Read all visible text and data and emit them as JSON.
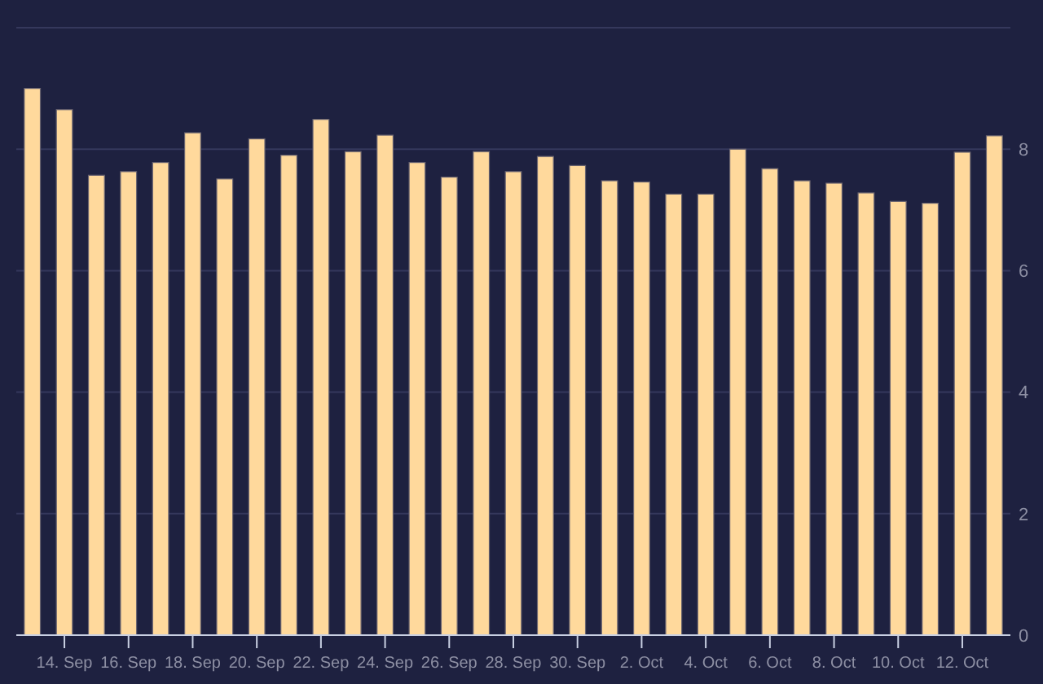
{
  "chart_data": {
    "type": "bar",
    "x": [
      "--09-13",
      "--09-14",
      "--09-15",
      "--09-16",
      "--09-17",
      "--09-18",
      "--09-19",
      "--09-20",
      "--09-21",
      "--09-22",
      "--09-23",
      "--09-24",
      "--09-25",
      "--09-26",
      "--09-27",
      "--09-28",
      "--09-29",
      "--09-30",
      "--10-01",
      "--10-02",
      "--10-03",
      "--10-04",
      "--10-05",
      "--10-06",
      "--10-07",
      "--10-08",
      "--10-09",
      "--10-10",
      "--10-11",
      "--10-12",
      "--10-13"
    ],
    "values": [
      9.0,
      8.65,
      7.57,
      7.63,
      7.78,
      8.27,
      7.51,
      8.17,
      7.9,
      8.49,
      7.96,
      8.23,
      7.78,
      7.54,
      7.96,
      7.63,
      7.88,
      7.73,
      7.48,
      7.46,
      7.26,
      7.26,
      8.0,
      7.68,
      7.48,
      7.44,
      7.28,
      7.14,
      7.11,
      7.95,
      8.22
    ],
    "color": "#ffd99c",
    "xlim": [
      "--09-12T12:00",
      "--10-13T12:00"
    ],
    "xticks": [
      {
        "value": "--09-14",
        "label": "14. Sep"
      },
      {
        "value": "--09-16",
        "label": "16. Sep"
      },
      {
        "value": "--09-18",
        "label": "18. Sep"
      },
      {
        "value": "--09-20",
        "label": "20. Sep"
      },
      {
        "value": "--09-22",
        "label": "22. Sep"
      },
      {
        "value": "--09-24",
        "label": "24. Sep"
      },
      {
        "value": "--09-26",
        "label": "26. Sep"
      },
      {
        "value": "--09-28",
        "label": "28. Sep"
      },
      {
        "value": "--09-30",
        "label": "30. Sep"
      },
      {
        "value": "--10-02",
        "label": "2. Oct"
      },
      {
        "value": "--10-04",
        "label": "4. Oct"
      },
      {
        "value": "--10-06",
        "label": "6. Oct"
      },
      {
        "value": "--10-08",
        "label": "8. Oct"
      },
      {
        "value": "--10-10",
        "label": "10. Oct"
      },
      {
        "value": "--10-12",
        "label": "12. Oct"
      }
    ],
    "ylim": [
      0,
      10
    ],
    "yticks": [
      0,
      2,
      4,
      6,
      8,
      {
        "value": 10,
        "label": null
      }
    ],
    "grid": "y"
  }
}
